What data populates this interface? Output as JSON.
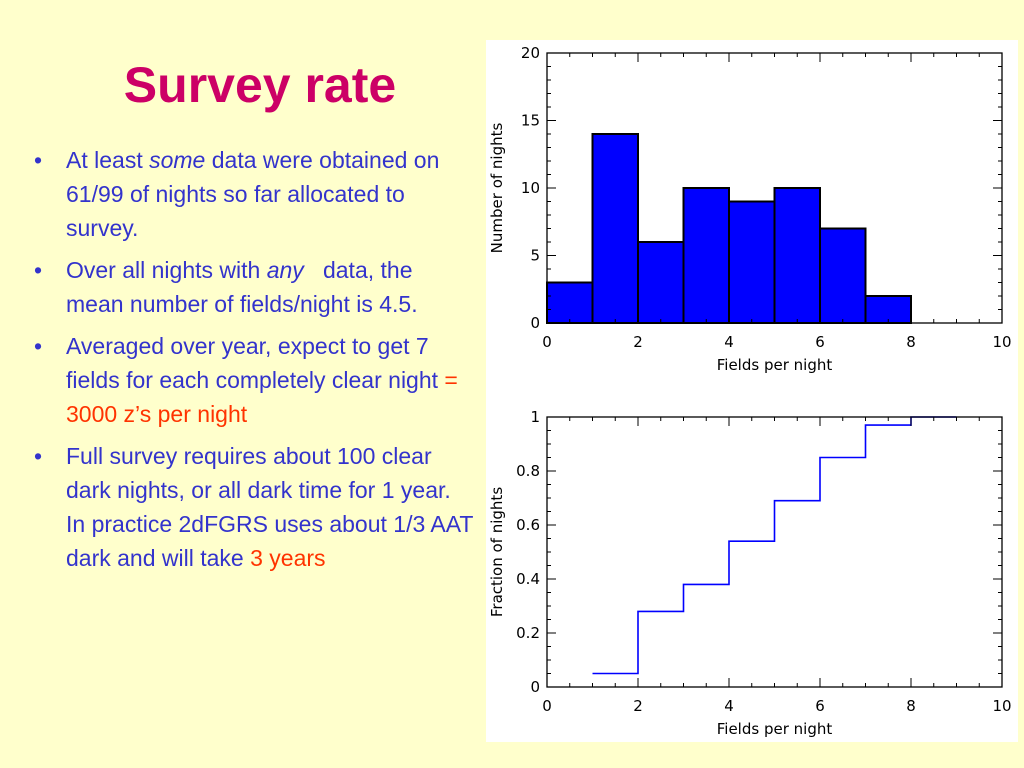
{
  "slide": {
    "title": "Survey rate",
    "bullets": [
      {
        "pre": "At least ",
        "em": "some",
        "post": " data were obtained on 61/99 of nights so far allocated to survey.",
        "accent": ""
      },
      {
        "pre": "Over all nights with ",
        "em": "any",
        "post": "   data, the mean number of fields/night is 4.5.",
        "accent": ""
      },
      {
        "pre": "Averaged over year, expect to get 7 fields for each completely clear night ",
        "em": "",
        "post": "",
        "accent": "= 3000 z’s per night"
      },
      {
        "pre": "Full survey requires about 100 clear dark nights, or all dark time for 1 year. In practice 2dFGRS uses about 1/3 AAT dark and will take ",
        "em": "",
        "post": "",
        "accent": "3 years"
      }
    ],
    "bullet_symbol": "•"
  },
  "colors": {
    "background": "#ffffcc",
    "title": "#cc0066",
    "text": "#3333cc",
    "accent": "#ff3300",
    "histogram_fill": "#0000ff",
    "cumulative_line": "#0000ff"
  },
  "chart_data": [
    {
      "type": "bar",
      "style": "histogram",
      "bin_edges": [
        0,
        1,
        2,
        3,
        4,
        5,
        6,
        7,
        8
      ],
      "values": [
        3,
        14,
        6,
        10,
        9,
        10,
        7,
        2
      ],
      "xlabel": "Fields per night",
      "ylabel": "Number of nights",
      "xlim": [
        0,
        10
      ],
      "ylim": [
        0,
        20
      ],
      "xticks": [
        "0",
        "2",
        "4",
        "6",
        "8",
        "10"
      ],
      "yticks": [
        "0",
        "5",
        "10",
        "15",
        "20"
      ],
      "grid": false
    },
    {
      "type": "line",
      "style": "step",
      "x": [
        1,
        2,
        3,
        4,
        5,
        6,
        7,
        8
      ],
      "y": [
        0.05,
        0.28,
        0.38,
        0.54,
        0.69,
        0.85,
        0.97,
        1.0
      ],
      "xlabel": "Fields per night",
      "ylabel": "Fraction of nights",
      "xlim": [
        0,
        10
      ],
      "ylim": [
        0,
        1
      ],
      "xticks": [
        "0",
        "2",
        "4",
        "6",
        "8",
        "10"
      ],
      "yticks": [
        "0",
        "0.2",
        "0.4",
        "0.6",
        "0.8",
        "1"
      ],
      "grid": false
    }
  ]
}
